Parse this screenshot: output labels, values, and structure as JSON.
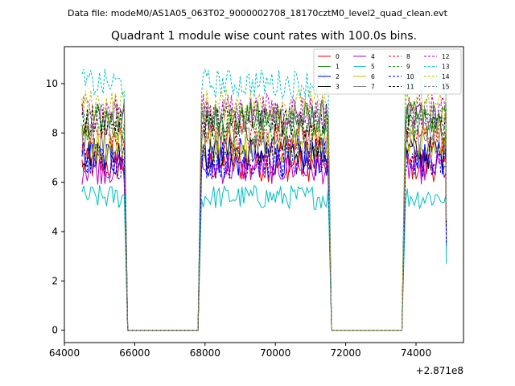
{
  "header": {
    "datafile": "Data file: modeM0/AS1A05_063T02_9000002708_18170cztM0_level2_quad_clean.evt",
    "title": "Quadrant 1 module wise count rates with 100.0s bins."
  },
  "chart_data": {
    "type": "line",
    "title": "Quadrant 1 module wise count rates with 100.0s bins.",
    "xlabel": "",
    "ylabel": "",
    "x_offset_label": "+2.871e8",
    "x_offset": 287100000,
    "xlim": [
      64000,
      75350
    ],
    "ylim": [
      -0.5,
      11.5
    ],
    "xticks": [
      64000,
      66000,
      68000,
      70000,
      72000,
      74000
    ],
    "yticks": [
      0,
      2,
      4,
      6,
      8,
      10
    ],
    "grid": false,
    "legend_placement": "top-right",
    "good_time_intervals": [
      [
        64500,
        65700
      ],
      [
        67900,
        71500
      ],
      [
        73700,
        74850
      ]
    ],
    "zero_intervals": [
      [
        65800,
        67800
      ],
      [
        71600,
        73600
      ]
    ],
    "series": [
      {
        "name": "0",
        "color": "#ff0000",
        "dash": "solid",
        "level": 6.7,
        "amp": 0.35
      },
      {
        "name": "1",
        "color": "#008000",
        "dash": "solid",
        "level": 8.6,
        "amp": 0.35
      },
      {
        "name": "2",
        "color": "#0000ff",
        "dash": "solid",
        "level": 7.0,
        "amp": 0.4
      },
      {
        "name": "3",
        "color": "#000000",
        "dash": "solid",
        "level": 7.2,
        "amp": 0.35
      },
      {
        "name": "4",
        "color": "#bf00bf",
        "dash": "solid",
        "level": 6.6,
        "amp": 0.35
      },
      {
        "name": "5",
        "color": "#00bfbf",
        "dash": "solid",
        "level": 5.4,
        "amp": 0.25
      },
      {
        "name": "6",
        "color": "#bfbf00",
        "dash": "solid",
        "level": 7.6,
        "amp": 0.4
      },
      {
        "name": "7",
        "color": "#808080",
        "dash": "solid",
        "level": 7.8,
        "amp": 0.35
      },
      {
        "name": "8",
        "color": "#ff0000",
        "dash": "dashed",
        "level": 7.9,
        "amp": 0.35
      },
      {
        "name": "9",
        "color": "#008000",
        "dash": "dashed",
        "level": 8.3,
        "amp": 0.35
      },
      {
        "name": "10",
        "color": "#0000ff",
        "dash": "dashed",
        "level": 6.9,
        "amp": 0.4
      },
      {
        "name": "11",
        "color": "#000000",
        "dash": "dashed",
        "level": 8.5,
        "amp": 0.35
      },
      {
        "name": "12",
        "color": "#bf00bf",
        "dash": "dashed",
        "level": 8.9,
        "amp": 0.35
      },
      {
        "name": "13",
        "color": "#00bfbf",
        "dash": "dashed",
        "level": 10.0,
        "amp": 0.3
      },
      {
        "name": "14",
        "color": "#bfbf00",
        "dash": "dashed",
        "level": 9.1,
        "amp": 0.35
      },
      {
        "name": "15",
        "color": "#808080",
        "dash": "dashed",
        "level": 8.7,
        "amp": 0.35
      }
    ]
  }
}
